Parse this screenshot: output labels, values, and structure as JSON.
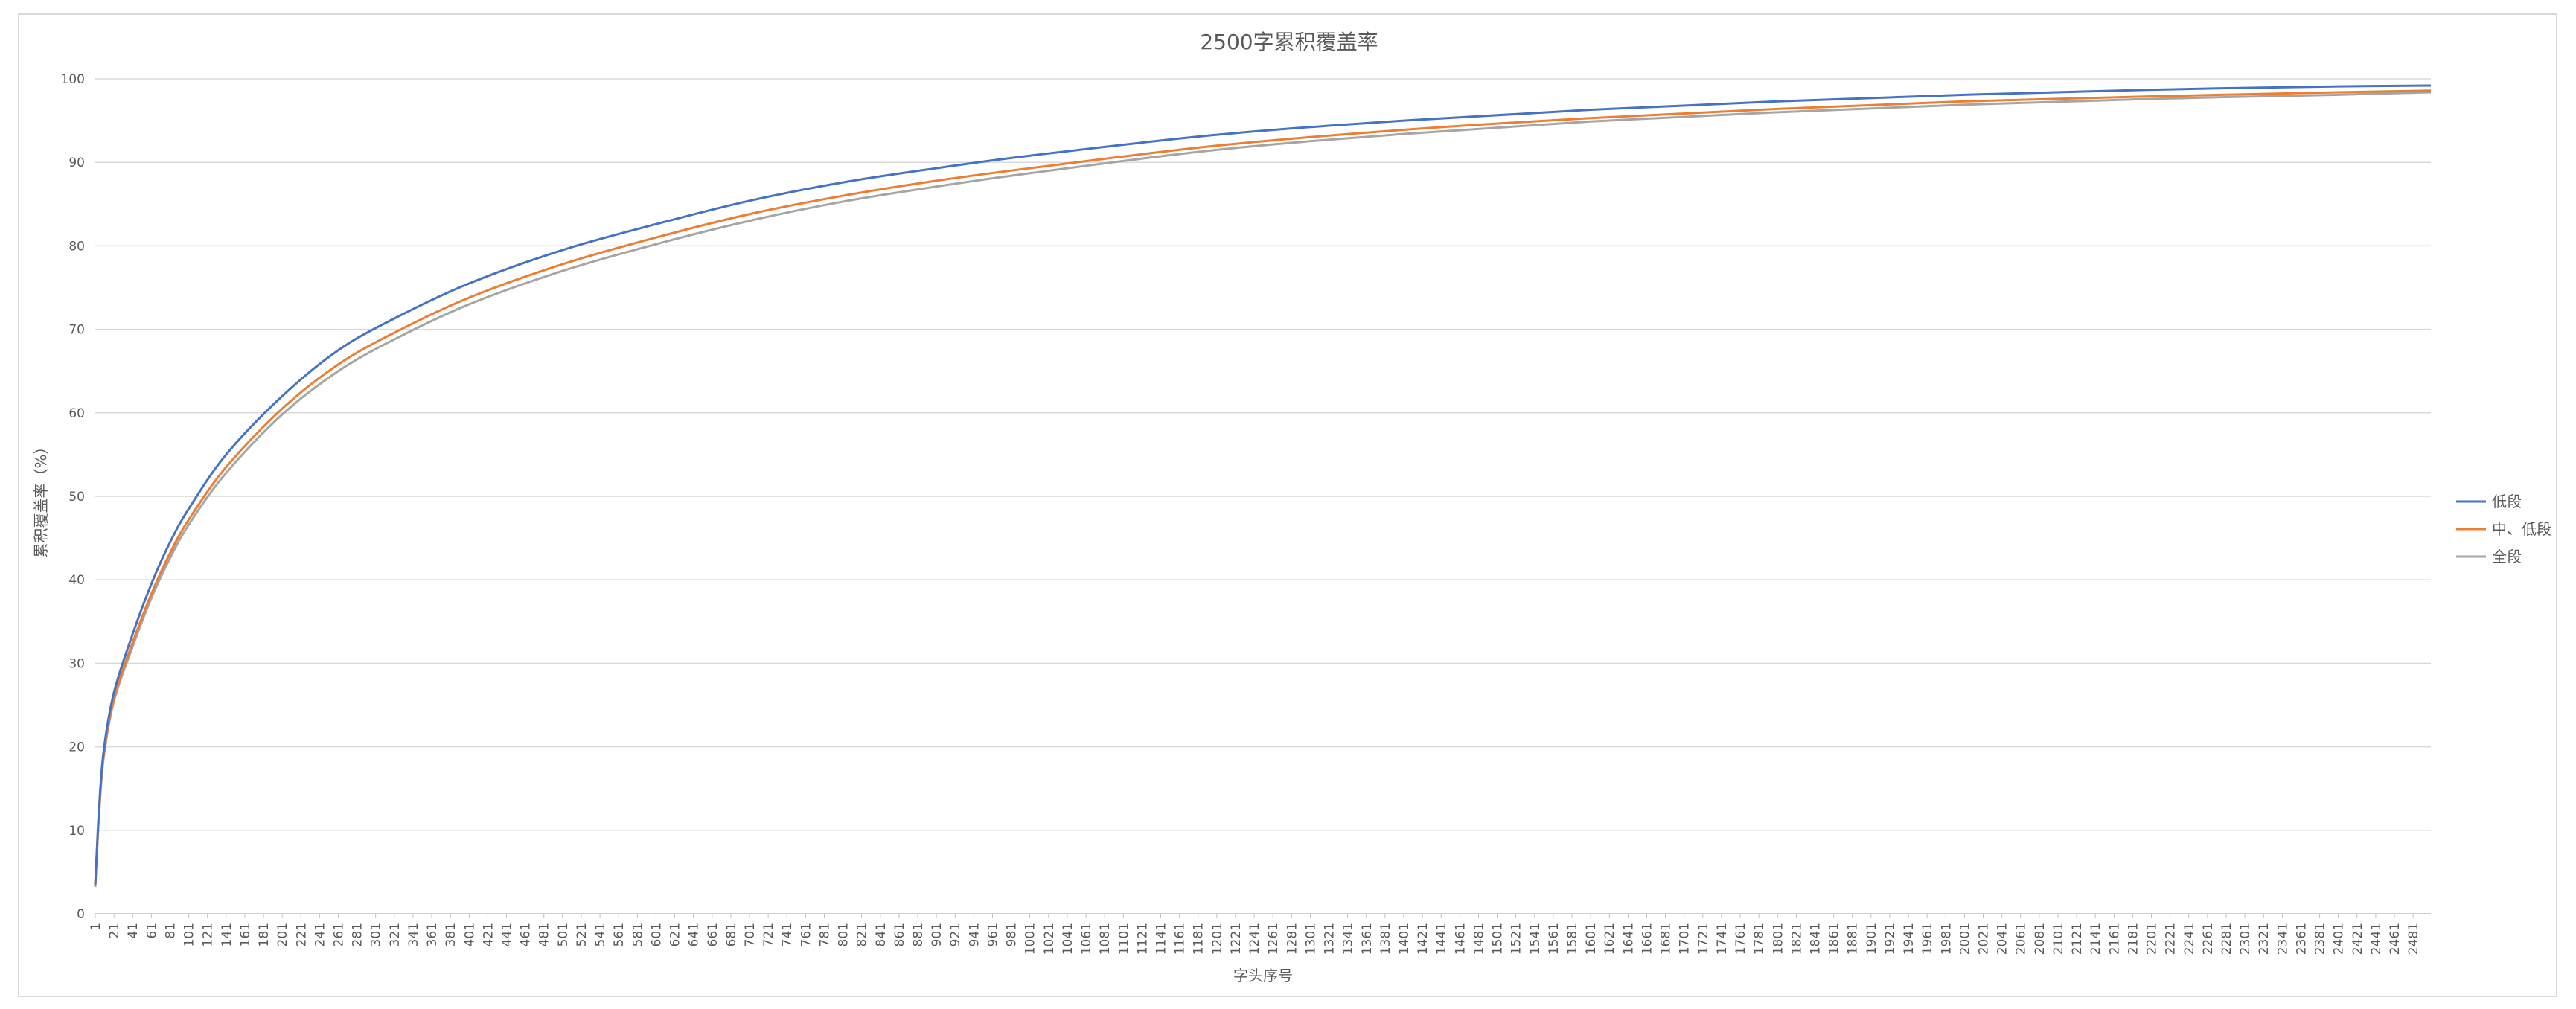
{
  "chart_data": {
    "type": "line",
    "title": "2500字累积覆盖率",
    "xlabel": "字头序号",
    "ylabel": "累积覆盖率（%）",
    "ylim": [
      0,
      100
    ],
    "yticks": [
      0,
      10,
      20,
      30,
      40,
      50,
      60,
      70,
      80,
      90,
      100
    ],
    "xlim": [
      1,
      2500
    ],
    "xtick_start": 1,
    "xtick_step": 20,
    "xtick_end": 2481,
    "grid": "horizontal",
    "legend_position": "right",
    "x": [
      1,
      5,
      10,
      21,
      41,
      61,
      81,
      101,
      141,
      201,
      261,
      321,
      401,
      501,
      601,
      701,
      801,
      901,
      1001,
      1201,
      1401,
      1601,
      1801,
      2001,
      2201,
      2401,
      2500
    ],
    "series": [
      {
        "name": "低段",
        "color": "#4472C4",
        "values": [
          3.5,
          12.5,
          19.5,
          26.5,
          33.5,
          39.5,
          44.5,
          48.5,
          55,
          62,
          67.5,
          71.3,
          75.5,
          79.5,
          82.6,
          85.4,
          87.6,
          89.3,
          90.8,
          93.3,
          95,
          96.3,
          97.3,
          98.1,
          98.7,
          99.1,
          99.2
        ]
      },
      {
        "name": "中、低段",
        "color": "#ED7D31",
        "values": [
          3.3,
          12,
          19,
          25.8,
          32.5,
          38.3,
          43.2,
          47.2,
          53.5,
          60.5,
          65.8,
          69.6,
          73.8,
          77.8,
          81,
          83.8,
          86,
          87.8,
          89.3,
          92,
          93.9,
          95.3,
          96.4,
          97.3,
          97.9,
          98.4,
          98.6
        ]
      },
      {
        "name": "全段",
        "color": "#A5A5A5",
        "values": [
          3.2,
          11.8,
          18.7,
          25.5,
          32,
          37.8,
          42.6,
          46.6,
          52.8,
          59.8,
          65,
          68.8,
          73,
          77,
          80.2,
          83,
          85.3,
          87.1,
          88.7,
          91.5,
          93.4,
          94.9,
          96,
          96.9,
          97.6,
          98.1,
          98.4
        ]
      }
    ]
  }
}
